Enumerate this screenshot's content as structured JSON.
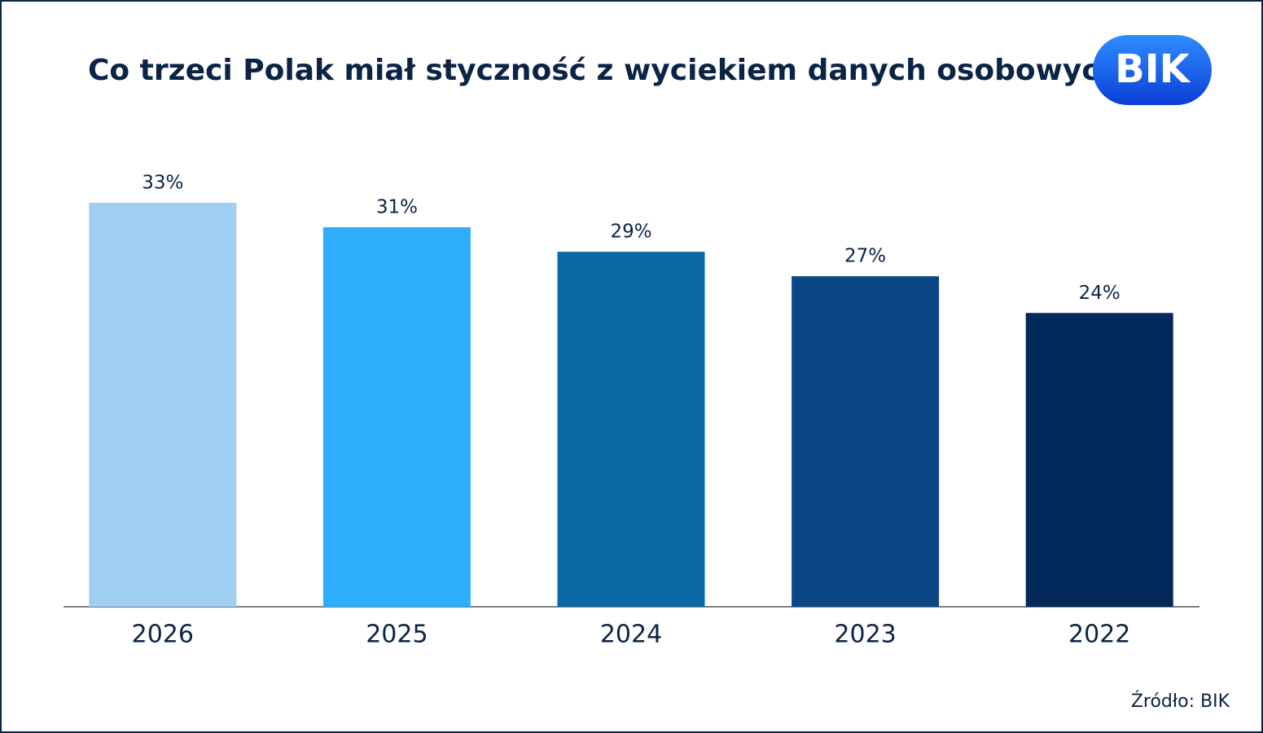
{
  "chart_data": {
    "type": "bar",
    "title": "Co trzeci Polak miał styczność z wyciekiem danych osobowych",
    "categories": [
      "2026",
      "2025",
      "2024",
      "2023",
      "2022"
    ],
    "values": [
      33,
      31,
      29,
      27,
      24
    ],
    "value_labels": [
      "33%",
      "31%",
      "29%",
      "27%",
      "24%"
    ],
    "colors": [
      "#9ecff0",
      "#2eaefc",
      "#0a6aa4",
      "#0b4687",
      "#03295a"
    ],
    "source": "Źródło: BIK",
    "logo": "BIK"
  }
}
